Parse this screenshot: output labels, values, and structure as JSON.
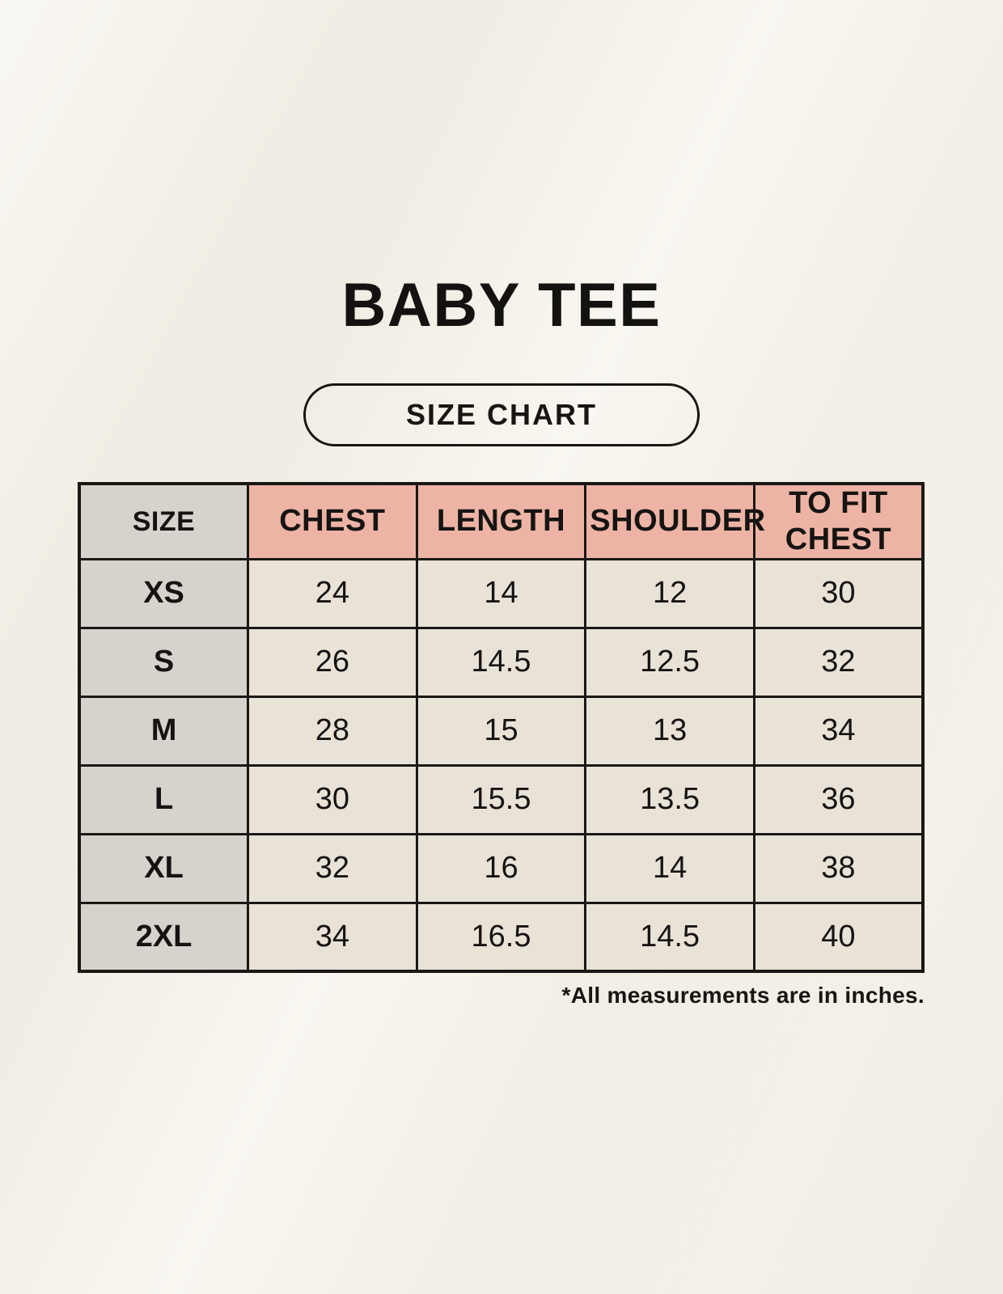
{
  "header": {
    "title": "BABY TEE",
    "badge": "SIZE CHART"
  },
  "footer": {
    "note": "*All measurements are in inches."
  },
  "colors": {
    "page-bg": "#f6f2ea",
    "header-pink": "#edb4a5",
    "size-gray": "#d8d2cd",
    "cell-cream": "#e9e2d7",
    "table-border": "#1a1815",
    "text": "#161412"
  },
  "chart_data": {
    "type": "table",
    "title": "BABY TEE",
    "subtitle": "SIZE CHART",
    "units": "inches",
    "columns": [
      "SIZE",
      "CHEST",
      "LENGTH",
      "SHOULDER",
      "TO FIT CHEST"
    ],
    "rows": [
      [
        "XS",
        "24",
        "14",
        "12",
        "30"
      ],
      [
        "S",
        "26",
        "14.5",
        "12.5",
        "32"
      ],
      [
        "M",
        "28",
        "15",
        "13",
        "34"
      ],
      [
        "L",
        "30",
        "15.5",
        "13.5",
        "36"
      ],
      [
        "XL",
        "32",
        "16",
        "14",
        "38"
      ],
      [
        "2XL",
        "34",
        "16.5",
        "14.5",
        "40"
      ]
    ],
    "footnote": "*All measurements are in inches."
  }
}
